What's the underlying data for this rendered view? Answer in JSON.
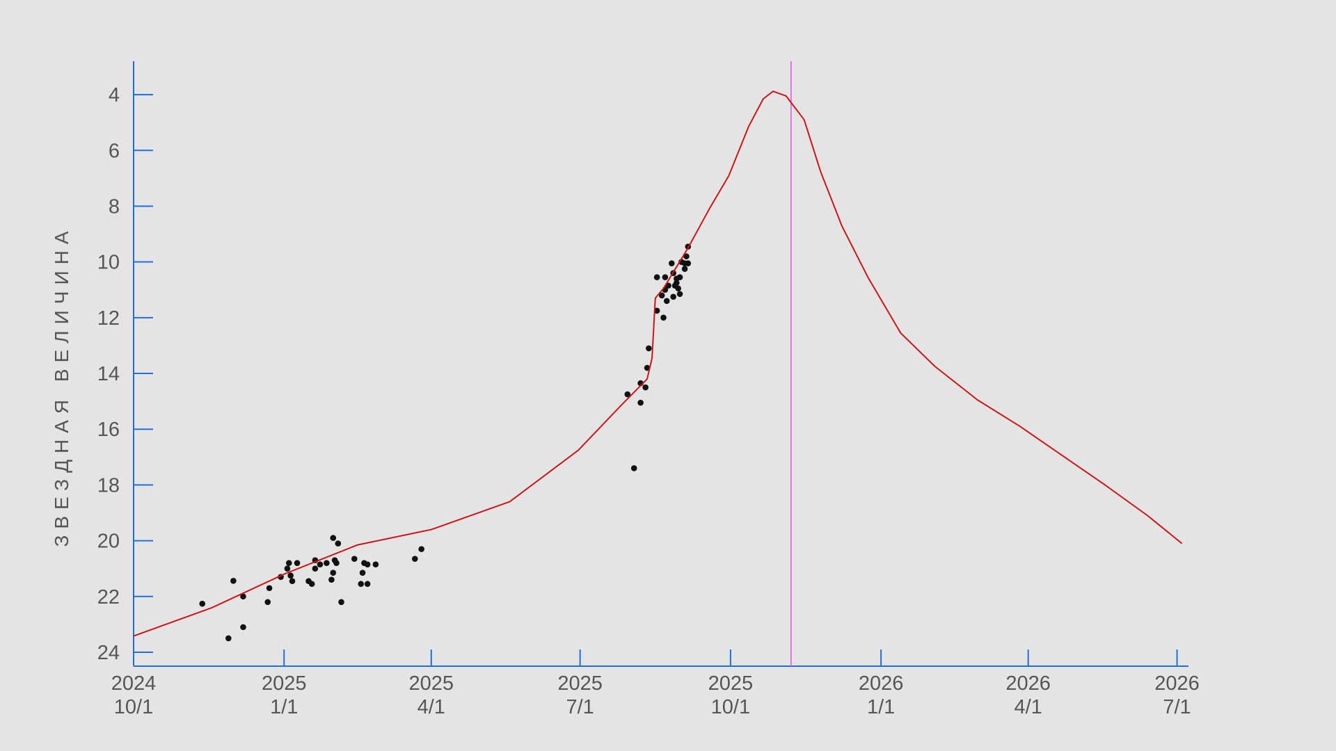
{
  "chart_data": {
    "type": "scatter",
    "ylabel": "ЗВЕЗДНАЯ ВЕЛИЧИНА",
    "xlim": [
      "2024-10-01",
      "2026-07-08"
    ],
    "ylim": [
      24.5,
      2.8
    ],
    "yticks": [
      4,
      6,
      8,
      10,
      12,
      14,
      16,
      18,
      20,
      22,
      24
    ],
    "xticks": [
      {
        "value": "2024-10-01",
        "label": [
          "2024",
          "10/1"
        ]
      },
      {
        "value": "2025-01-01",
        "label": [
          "2025",
          "1/1"
        ]
      },
      {
        "value": "2025-04-01",
        "label": [
          "2025",
          "4/1"
        ]
      },
      {
        "value": "2025-07-01",
        "label": [
          "2025",
          "7/1"
        ]
      },
      {
        "value": "2025-10-01",
        "label": [
          "2025",
          "10/1"
        ]
      },
      {
        "value": "2026-01-01",
        "label": [
          "2026",
          "1/1"
        ]
      },
      {
        "value": "2026-04-01",
        "label": [
          "2026",
          "4/1"
        ]
      },
      {
        "value": "2026-07-01",
        "label": [
          "2026",
          "7/1"
        ]
      }
    ],
    "axis_color": "#1f6fe0",
    "marker_line": {
      "x": "2025-11-07",
      "color": "#e050e8"
    },
    "series": [
      {
        "type": "scatter",
        "color": "#111111",
        "x": [
          "2024-11-12",
          "2024-11-28",
          "2024-12-01",
          "2024-12-07",
          "2024-12-07",
          "2024-12-22",
          "2024-12-23",
          "2024-12-30",
          "2025-01-03",
          "2025-01-04",
          "2025-01-05",
          "2025-01-06",
          "2025-01-09",
          "2025-01-16",
          "2025-01-18",
          "2025-01-20",
          "2025-01-20",
          "2025-01-23",
          "2025-01-27",
          "2025-01-30",
          "2025-01-31",
          "2025-01-31",
          "2025-02-01",
          "2025-02-02",
          "2025-02-03",
          "2025-02-05",
          "2025-02-13",
          "2025-02-17",
          "2025-02-19",
          "2025-02-18",
          "2025-02-21",
          "2025-02-21",
          "2025-02-26",
          "2025-03-22",
          "2025-03-26",
          "2025-07-30",
          "2025-08-03",
          "2025-08-07",
          "2025-08-07",
          "2025-08-10",
          "2025-08-11",
          "2025-08-12",
          "2025-08-17",
          "2025-08-17",
          "2025-08-20",
          "2025-08-21",
          "2025-08-22",
          "2025-08-22",
          "2025-08-23",
          "2025-08-24",
          "2025-08-26",
          "2025-08-27",
          "2025-08-27",
          "2025-08-28",
          "2025-08-29",
          "2025-08-29",
          "2025-08-30",
          "2025-08-31",
          "2025-08-31",
          "2025-09-01",
          "2025-09-03",
          "2025-09-03",
          "2025-09-04",
          "2025-09-05",
          "2025-09-05"
        ],
        "values": [
          22.26,
          23.5,
          21.44,
          22.0,
          23.1,
          22.2,
          21.7,
          21.3,
          21.0,
          20.8,
          21.25,
          21.45,
          20.8,
          21.45,
          21.55,
          20.7,
          21.0,
          20.85,
          20.8,
          21.4,
          21.15,
          19.9,
          20.7,
          20.8,
          20.1,
          22.2,
          20.65,
          21.55,
          20.8,
          21.15,
          20.85,
          21.55,
          20.85,
          20.65,
          20.3,
          14.75,
          17.4,
          14.35,
          15.05,
          14.5,
          13.8,
          13.1,
          11.75,
          10.55,
          11.2,
          12.0,
          10.55,
          11.0,
          11.4,
          10.85,
          10.05,
          11.25,
          10.4,
          10.85,
          10.6,
          10.75,
          10.95,
          11.15,
          10.55,
          10.0,
          10.05,
          10.25,
          9.8,
          10.05,
          9.45
        ]
      },
      {
        "type": "line",
        "color": "#cc1414",
        "x": [
          "2024-10-01",
          "2024-11-18",
          "2025-01-01",
          "2025-02-15",
          "2025-04-01",
          "2025-05-19",
          "2025-06-30",
          "2025-07-26",
          "2025-08-11",
          "2025-08-14",
          "2025-08-16",
          "2025-08-21",
          "2025-09-05",
          "2025-09-18",
          "2025-09-30",
          "2025-10-12",
          "2025-10-21",
          "2025-10-27",
          "2025-11-04",
          "2025-11-15",
          "2025-11-25",
          "2025-12-08",
          "2025-12-24",
          "2026-01-13",
          "2026-02-03",
          "2026-03-01",
          "2026-03-27",
          "2026-04-22",
          "2026-05-18",
          "2026-06-13",
          "2026-07-04"
        ],
        "values": [
          23.42,
          22.4,
          21.2,
          20.15,
          19.6,
          18.6,
          16.75,
          15.15,
          14.2,
          13.45,
          11.3,
          10.95,
          9.5,
          8.1,
          6.9,
          5.15,
          4.15,
          3.88,
          4.05,
          4.9,
          6.75,
          8.7,
          10.55,
          12.55,
          13.75,
          14.95,
          15.9,
          16.95,
          18.0,
          19.1,
          20.1
        ]
      }
    ]
  }
}
